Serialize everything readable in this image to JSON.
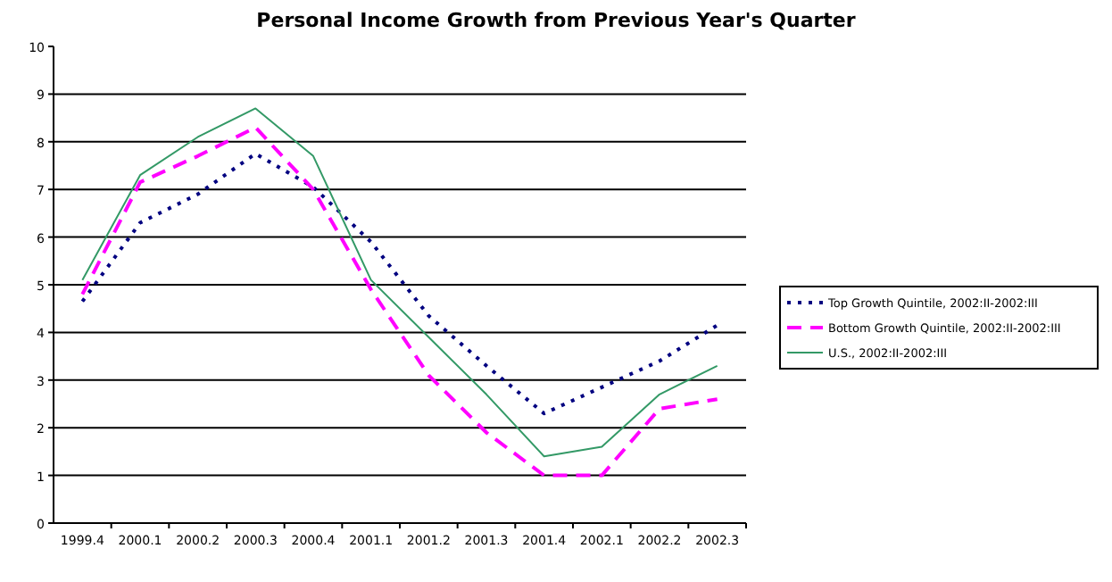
{
  "chart_data": {
    "type": "line",
    "title": "Personal Income Growth from Previous Year's Quarter",
    "categories": [
      "1999.4",
      "2000.1",
      "2000.2",
      "2000.3",
      "2000.4",
      "2001.1",
      "2001.2",
      "2001.3",
      "2001.4",
      "2002.1",
      "2002.2",
      "2002.3"
    ],
    "series": [
      {
        "name": "Top Growth Quintile, 2002:II-2002:III",
        "color": "#000080",
        "line_style": "dotted",
        "values": [
          4.65,
          6.3,
          6.9,
          7.75,
          7.05,
          5.9,
          4.35,
          3.3,
          2.3,
          2.85,
          3.4,
          4.15
        ]
      },
      {
        "name": "Bottom Growth Quintile, 2002:II-2002:III",
        "color": "#ff00ff",
        "line_style": "dashed",
        "values": [
          4.8,
          7.15,
          7.7,
          8.3,
          7.0,
          4.9,
          3.1,
          1.9,
          1.0,
          1.0,
          2.4,
          2.6
        ]
      },
      {
        "name": "U.S., 2002:II-2002:III",
        "color": "#339966",
        "line_style": "solid",
        "values": [
          5.1,
          7.3,
          8.1,
          8.7,
          7.7,
          5.1,
          3.9,
          2.7,
          1.4,
          1.6,
          2.7,
          3.3
        ]
      }
    ],
    "ylim": [
      0,
      10
    ],
    "yticks": [
      0,
      1,
      2,
      3,
      4,
      5,
      6,
      7,
      8,
      9,
      10
    ],
    "grid": "y",
    "legend": "right",
    "marker": "none"
  }
}
